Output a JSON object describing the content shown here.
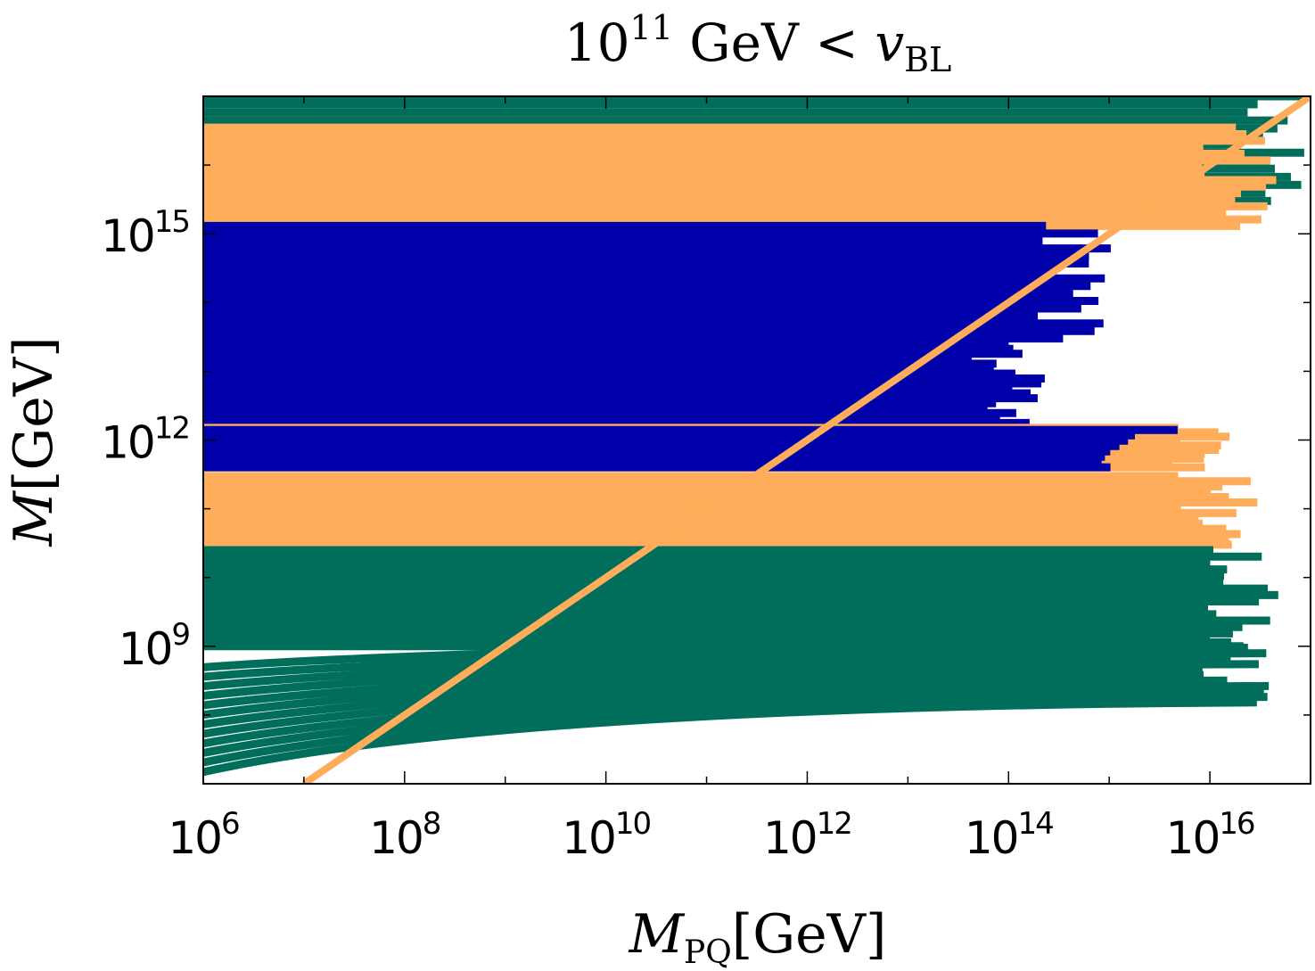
{
  "chart_data": {
    "type": "line",
    "title": {
      "base": "10",
      "exp": "11",
      "middle": " GeV < ",
      "var": "v",
      "sub": "BL"
    },
    "xlabel": {
      "var": "M",
      "sub": "PQ",
      "unit": "[GeV]"
    },
    "ylabel": {
      "var": "M",
      "unit": "[GeV]"
    },
    "xscale": "log",
    "yscale": "log",
    "xlim": [
      1000000.0,
      1e+17
    ],
    "ylim": [
      10000000.0,
      1e+17
    ],
    "x_ticks": [
      {
        "base": "10",
        "exp": "6",
        "value": 1000000.0
      },
      {
        "base": "10",
        "exp": "8",
        "value": 100000000.0
      },
      {
        "base": "10",
        "exp": "10",
        "value": 10000000000.0
      },
      {
        "base": "10",
        "exp": "12",
        "value": 1000000000000.0
      },
      {
        "base": "10",
        "exp": "14",
        "value": 100000000000000.0
      },
      {
        "base": "10",
        "exp": "16",
        "value": 1e+16
      }
    ],
    "y_ticks": [
      {
        "base": "10",
        "exp": "9",
        "value": 1000000000.0
      },
      {
        "base": "10",
        "exp": "12",
        "value": 1000000000000.0
      },
      {
        "base": "10",
        "exp": "15",
        "value": 1000000000000000.0
      }
    ],
    "colors": {
      "green": "#006e5a",
      "orange": "#ffad5a",
      "blue": "#0000aa"
    },
    "diagonal": {
      "x": [
        10000000.0,
        1e+17
      ],
      "y": [
        10000000.0,
        1e+17
      ],
      "color": "#ffad5a"
    },
    "series": [
      {
        "color": "green",
        "band": [
          3000000000000000.0,
          1e+17
        ],
        "x_end": 1e+17,
        "count": 14
      },
      {
        "color": "orange",
        "band": [
          1300000000000000.0,
          3.5e+16
        ],
        "x_end": 5e+16,
        "count": 16
      },
      {
        "color": "blue",
        "band": [
          30000000000000.0,
          1300000000000000.0
        ],
        "x_end": 1200000000000000.0,
        "count": 16
      },
      {
        "color": "blue",
        "band": [
          1500000000000.0,
          25000000000000.0
        ],
        "x_end": 250000000000000.0,
        "count": 18
      },
      {
        "color": "orange",
        "band": [
          400000000000.0,
          1500000000000.0
        ],
        "x_end": 2e+16,
        "count": 10
      },
      {
        "color": "blue",
        "band": [
          400000000000.0,
          1400000000000.0
        ],
        "x_end": 5000000000000000.0,
        "count": 8
      },
      {
        "color": "orange",
        "band": [
          30000000000.0,
          300000000000.0
        ],
        "x_end": 3e+16,
        "count": 14
      },
      {
        "color": "green",
        "band": [
          1000000000.0,
          25000000000.0
        ],
        "x_end": 5e+16,
        "count": 16
      },
      {
        "color": "green",
        "band": [
          120000000.0,
          900000000.0
        ],
        "x_end": 4e+16,
        "count": 12
      }
    ]
  }
}
